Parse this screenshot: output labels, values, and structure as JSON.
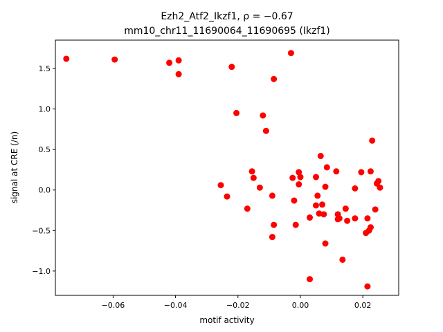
{
  "chart_data": {
    "type": "scatter",
    "title_line1": "Ezh2_Atf2_Ikzf1, ρ = −0.67",
    "title_line2": "mm10_chr11_11690064_11690695 (Ikzf1)",
    "xlabel": "motif activity",
    "ylabel": "signal at CRE (/n)",
    "xlim": [
      -0.0785,
      0.0315
    ],
    "ylim": [
      -1.3,
      1.85
    ],
    "xticks": [
      -0.06,
      -0.04,
      -0.02,
      0.0,
      0.02
    ],
    "xtick_labels": [
      "−0.06",
      "−0.04",
      "−0.02",
      "0.00",
      "0.02"
    ],
    "yticks": [
      -1.0,
      -0.5,
      0.0,
      0.5,
      1.0,
      1.5
    ],
    "ytick_labels": [
      "−1.0",
      "−0.5",
      "0.0",
      "0.5",
      "1.0",
      "1.5"
    ],
    "grid": false,
    "marker_color": "#ff0000",
    "series": [
      {
        "points": [
          [
            -0.075,
            1.62
          ],
          [
            -0.0595,
            1.61
          ],
          [
            -0.042,
            1.57
          ],
          [
            -0.039,
            1.6
          ],
          [
            -0.039,
            1.43
          ],
          [
            -0.022,
            1.52
          ],
          [
            -0.0085,
            1.37
          ],
          [
            -0.003,
            1.69
          ],
          [
            -0.0205,
            0.95
          ],
          [
            -0.012,
            0.92
          ],
          [
            -0.011,
            0.73
          ],
          [
            -0.0255,
            0.06
          ],
          [
            -0.0235,
            -0.08
          ],
          [
            -0.0155,
            0.23
          ],
          [
            -0.015,
            0.15
          ],
          [
            -0.013,
            0.03
          ],
          [
            -0.017,
            -0.23
          ],
          [
            -0.009,
            -0.07
          ],
          [
            -0.0085,
            -0.43
          ],
          [
            -0.009,
            -0.58
          ],
          [
            -0.0025,
            0.15
          ],
          [
            -0.0015,
            -0.43
          ],
          [
            -0.002,
            -0.13
          ],
          [
            -0.0005,
            0.22
          ],
          [
            0.0,
            0.16
          ],
          [
            -0.0005,
            0.07
          ],
          [
            0.003,
            -0.34
          ],
          [
            0.003,
            -1.1
          ],
          [
            0.005,
            0.16
          ],
          [
            0.0055,
            -0.07
          ],
          [
            0.005,
            -0.19
          ],
          [
            0.006,
            -0.29
          ],
          [
            0.0065,
            0.42
          ],
          [
            0.007,
            -0.18
          ],
          [
            0.0075,
            -0.3
          ],
          [
            0.008,
            0.04
          ],
          [
            0.0085,
            0.28
          ],
          [
            0.008,
            -0.66
          ],
          [
            0.0115,
            0.23
          ],
          [
            0.012,
            -0.3
          ],
          [
            0.012,
            -0.36
          ],
          [
            0.0125,
            -0.35
          ],
          [
            0.0145,
            -0.23
          ],
          [
            0.015,
            -0.38
          ],
          [
            0.0135,
            -0.86
          ],
          [
            0.0175,
            0.02
          ],
          [
            0.0175,
            -0.35
          ],
          [
            0.0195,
            0.22
          ],
          [
            0.021,
            -0.53
          ],
          [
            0.0215,
            -0.35
          ],
          [
            0.0225,
            -0.46
          ],
          [
            0.022,
            -0.5
          ],
          [
            0.0225,
            0.23
          ],
          [
            0.023,
            0.61
          ],
          [
            0.024,
            -0.24
          ],
          [
            0.0245,
            0.08
          ],
          [
            0.025,
            0.11
          ],
          [
            0.0255,
            0.03
          ],
          [
            0.0215,
            -1.19
          ]
        ]
      }
    ]
  }
}
